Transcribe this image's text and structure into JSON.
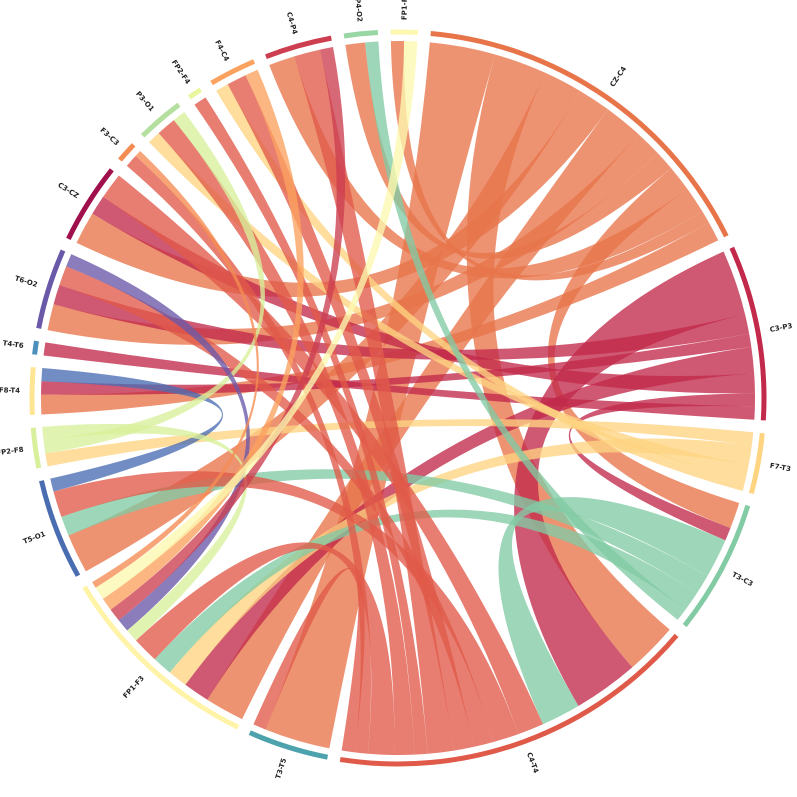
{
  "chart_data": {
    "type": "chord",
    "nodes": [
      {
        "name": "FP1-F7",
        "color": "#fdf8b0"
      },
      {
        "name": "CZ-C4",
        "color": "#e8754a"
      },
      {
        "name": "C3-P3",
        "color": "#c2294a"
      },
      {
        "name": "F7-T3",
        "color": "#fed481"
      },
      {
        "name": "T3-C3",
        "color": "#82cba4"
      },
      {
        "name": "C4-T4",
        "color": "#e05a49"
      },
      {
        "name": "T3-T5",
        "color": "#4ca3ad"
      },
      {
        "name": "FP1-F3",
        "color": "#fff3a8"
      },
      {
        "name": "T5-O1",
        "color": "#4a6db2"
      },
      {
        "name": "FP2-F8",
        "color": "#d8ef9b"
      },
      {
        "name": "F8-T4",
        "color": "#fee593"
      },
      {
        "name": "T4-T6",
        "color": "#4b8fba"
      },
      {
        "name": "T6-O2",
        "color": "#6a58a8"
      },
      {
        "name": "C3-CZ",
        "color": "#a0104d"
      },
      {
        "name": "F3-C3",
        "color": "#f58c52"
      },
      {
        "name": "P3-O1",
        "color": "#b4df9f"
      },
      {
        "name": "FP2-F4",
        "color": "#eaf79e"
      },
      {
        "name": "F4-C4",
        "color": "#fba25f"
      },
      {
        "name": "C4-P4",
        "color": "#cc3e50"
      },
      {
        "name": "P4-O2",
        "color": "#98d6a4"
      }
    ],
    "links": [
      {
        "source": "CZ-C4",
        "target": "T3-T5",
        "value": 10
      },
      {
        "source": "CZ-C4",
        "target": "C4-T4",
        "value": 8
      },
      {
        "source": "CZ-C4",
        "target": "T5-O1",
        "value": 6
      },
      {
        "source": "CZ-C4",
        "target": "C3-CZ",
        "value": 5
      },
      {
        "source": "CZ-C4",
        "target": "FP1-F3",
        "value": 6
      },
      {
        "source": "CZ-C4",
        "target": "T6-O2",
        "value": 4
      },
      {
        "source": "CZ-C4",
        "target": "P4-O2",
        "value": 3
      },
      {
        "source": "CZ-C4",
        "target": "T3-C3",
        "value": 4
      },
      {
        "source": "CZ-C4",
        "target": "C4-P4",
        "value": 4
      },
      {
        "source": "CZ-C4",
        "target": "FP1-F7",
        "value": 2
      },
      {
        "source": "CZ-C4",
        "target": "F8-T4",
        "value": 3
      },
      {
        "source": "C3-P3",
        "target": "C4-T4",
        "value": 10
      },
      {
        "source": "C3-P3",
        "target": "T6-O2",
        "value": 3
      },
      {
        "source": "C3-P3",
        "target": "F8-T4",
        "value": 2
      },
      {
        "source": "C3-P3",
        "target": "FP1-F3",
        "value": 4
      },
      {
        "source": "C3-P3",
        "target": "C3-CZ",
        "value": 3
      },
      {
        "source": "C3-P3",
        "target": "T3-C3",
        "value": 2
      },
      {
        "source": "C3-P3",
        "target": "T4-T6",
        "value": 2
      },
      {
        "source": "F7-T3",
        "target": "FP2-F8",
        "value": 2
      },
      {
        "source": "F7-T3",
        "target": "FP1-F3",
        "value": 3
      },
      {
        "source": "F7-T3",
        "target": "P3-O1",
        "value": 2
      },
      {
        "source": "F7-T3",
        "target": "F4-C4",
        "value": 2
      },
      {
        "source": "T3-C3",
        "target": "C4-T4",
        "value": 6
      },
      {
        "source": "T3-C3",
        "target": "T5-O1",
        "value": 3
      },
      {
        "source": "T3-C3",
        "target": "FP1-F3",
        "value": 3
      },
      {
        "source": "T3-C3",
        "target": "P4-O2",
        "value": 2
      },
      {
        "source": "C4-T4",
        "target": "C3-CZ",
        "value": 4
      },
      {
        "source": "C4-T4",
        "target": "T5-O1",
        "value": 4
      },
      {
        "source": "C4-T4",
        "target": "T6-O2",
        "value": 3
      },
      {
        "source": "C4-T4",
        "target": "F4-C4",
        "value": 3
      },
      {
        "source": "C4-T4",
        "target": "C4-P4",
        "value": 4
      },
      {
        "source": "C4-T4",
        "target": "FP2-F4",
        "value": 2
      },
      {
        "source": "C4-T4",
        "target": "P3-O1",
        "value": 3
      },
      {
        "source": "C4-T4",
        "target": "FP1-F3",
        "value": 4
      },
      {
        "source": "C4-T4",
        "target": "F3-C3",
        "value": 2
      },
      {
        "source": "C4-T4",
        "target": "T3-T5",
        "value": 2
      },
      {
        "source": "T5-O1",
        "target": "F8-T4",
        "value": 2
      },
      {
        "source": "FP2-F8",
        "target": "P3-O1",
        "value": 2
      },
      {
        "source": "FP2-F8",
        "target": "FP1-F3",
        "value": 2
      },
      {
        "source": "T6-O2",
        "target": "FP1-F3",
        "value": 2
      },
      {
        "source": "C4-P4",
        "target": "FP1-F3",
        "value": 2
      },
      {
        "source": "F4-C4",
        "target": "FP1-F3",
        "value": 2
      },
      {
        "source": "FP1-F7",
        "target": "FP1-F3",
        "value": 2
      },
      {
        "source": "F3-C3",
        "target": "FP1-F3",
        "value": 1
      }
    ]
  }
}
